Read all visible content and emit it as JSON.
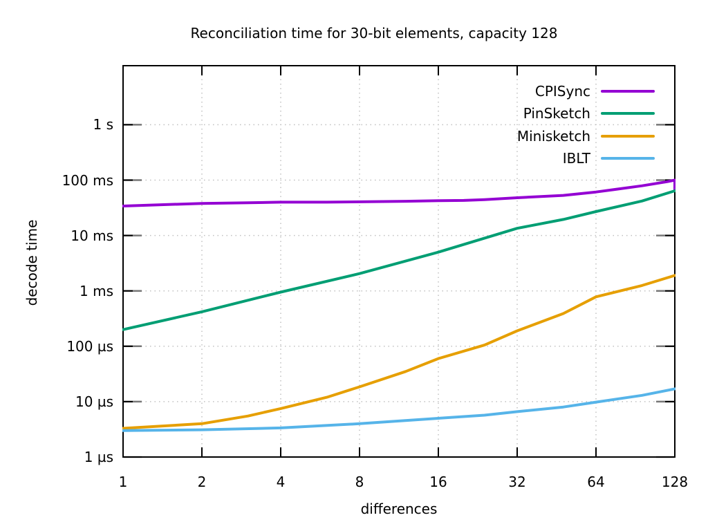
{
  "chart_data": {
    "type": "line",
    "title": "Reconciliation time for 30-bit elements, capacity 128",
    "xlabel": "differences",
    "ylabel": "decode time",
    "x_scale": "log2",
    "y_scale": "log10",
    "grid": true,
    "legend_position": "top-right-inside",
    "x_range": [
      1,
      128
    ],
    "y_range": [
      "1 µs",
      "~12 s"
    ],
    "x_ticks": [
      1,
      2,
      4,
      8,
      16,
      32,
      64,
      128
    ],
    "y_ticks": [
      {
        "label": "1 s",
        "us": 1000000
      },
      {
        "label": "100 ms",
        "us": 100000
      },
      {
        "label": "10 ms",
        "us": 10000
      },
      {
        "label": "1 ms",
        "us": 1000
      },
      {
        "label": "100 µs",
        "us": 100
      },
      {
        "label": "10 µs",
        "us": 10
      },
      {
        "label": "1 µs",
        "us": 1
      }
    ],
    "axis_color": "#000000",
    "grid_color": "#c0c0c0",
    "grid_stub_color": "#777777",
    "series": [
      {
        "name": "CPISync",
        "color": "#9400d3",
        "points_us": [
          [
            1,
            34000
          ],
          [
            2,
            38000
          ],
          [
            3,
            39000
          ],
          [
            4,
            40000
          ],
          [
            6,
            40000
          ],
          [
            8,
            40500
          ],
          [
            12,
            41500
          ],
          [
            16,
            42500
          ],
          [
            20,
            43000
          ],
          [
            24,
            44500
          ],
          [
            32,
            48000
          ],
          [
            48,
            53000
          ],
          [
            64,
            61000
          ],
          [
            96,
            79000
          ],
          [
            120,
            94000
          ],
          [
            128,
            100000
          ],
          [
            128,
            68000
          ]
        ]
      },
      {
        "name": "PinSketch",
        "color": "#009e73",
        "points_us": [
          [
            1,
            200
          ],
          [
            2,
            420
          ],
          [
            4,
            950
          ],
          [
            8,
            2050
          ],
          [
            16,
            5000
          ],
          [
            32,
            13500
          ],
          [
            48,
            19500
          ],
          [
            64,
            27000
          ],
          [
            96,
            42000
          ],
          [
            128,
            64000
          ]
        ]
      },
      {
        "name": "Minisketch",
        "color": "#e69f00",
        "points_us": [
          [
            1,
            3.3
          ],
          [
            2,
            4.0
          ],
          [
            3,
            5.5
          ],
          [
            4,
            7.5
          ],
          [
            6,
            12
          ],
          [
            8,
            18.5
          ],
          [
            12,
            35
          ],
          [
            16,
            60
          ],
          [
            24,
            105
          ],
          [
            32,
            190
          ],
          [
            48,
            390
          ],
          [
            64,
            780
          ],
          [
            96,
            1250
          ],
          [
            128,
            1900
          ]
        ]
      },
      {
        "name": "IBLT",
        "color": "#56b4e9",
        "points_us": [
          [
            1,
            3.0
          ],
          [
            2,
            3.1
          ],
          [
            4,
            3.35
          ],
          [
            8,
            4.0
          ],
          [
            16,
            5.0
          ],
          [
            24,
            5.7
          ],
          [
            32,
            6.6
          ],
          [
            48,
            8.0
          ],
          [
            64,
            9.8
          ],
          [
            96,
            13
          ],
          [
            128,
            17
          ]
        ]
      }
    ]
  }
}
